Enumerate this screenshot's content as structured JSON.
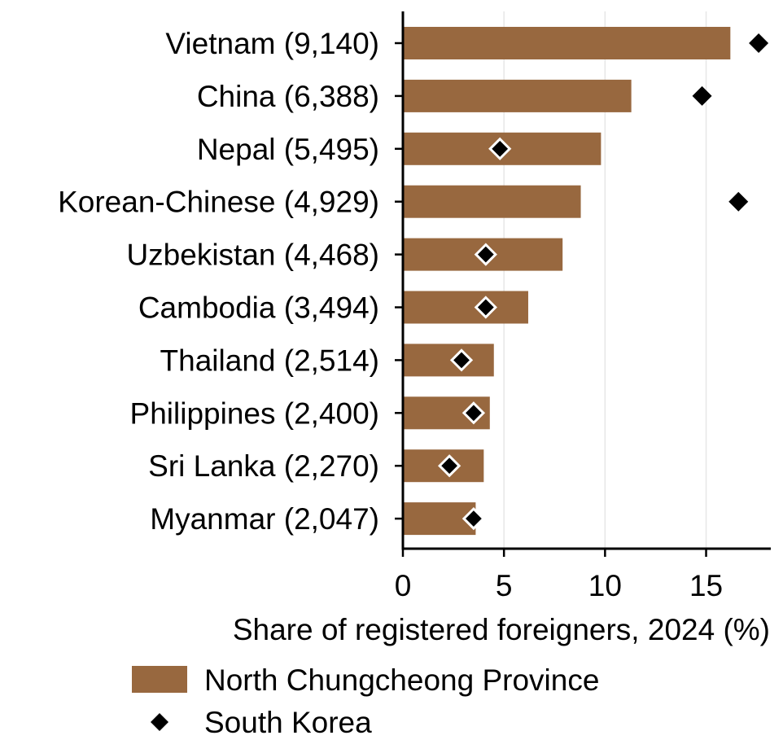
{
  "chart_data": {
    "type": "bar",
    "orientation": "horizontal",
    "title": "",
    "xlabel": "Share of registered foreigners, 2024 (%)",
    "ylabel": "",
    "xlim": [
      0,
      18.2
    ],
    "xticks": [
      0,
      5,
      10,
      15
    ],
    "xtick_labels": [
      "0",
      "5",
      "10",
      "15"
    ],
    "grid": "vertical major gridlines",
    "legend_position": "bottom",
    "categories": [
      "Vietnam (9,140)",
      "China (6,388)",
      "Nepal (5,495)",
      "Korean-Chinese (4,929)",
      "Uzbekistan (4,468)",
      "Cambodia (3,494)",
      "Thailand (2,514)",
      "Philippines (2,400)",
      "Sri Lanka (2,270)",
      "Myanmar (2,047)"
    ],
    "series": [
      {
        "name": "North Chungcheong Province",
        "kind": "bar",
        "color": "#98683f",
        "values": [
          16.2,
          11.3,
          9.8,
          8.8,
          7.9,
          6.2,
          4.5,
          4.3,
          4.0,
          3.6
        ]
      },
      {
        "name": "South Korea",
        "kind": "marker",
        "marker": "diamond",
        "color": "#000000",
        "values": [
          17.6,
          14.8,
          4.8,
          16.6,
          4.1,
          4.1,
          2.9,
          3.5,
          2.3,
          3.5
        ]
      }
    ]
  }
}
